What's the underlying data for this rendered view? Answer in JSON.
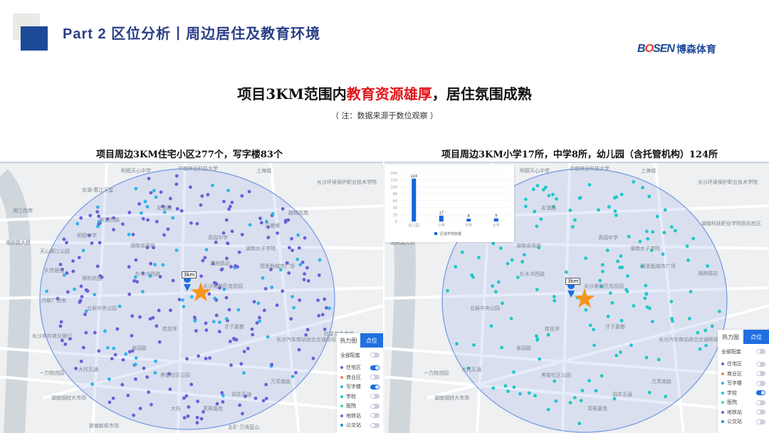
{
  "header": {
    "title": "Part 2 区位分析丨周边居住及教育环境",
    "logo_en_prefix": "B",
    "logo_en_mark": "O",
    "logo_en_suffix": "SEN",
    "logo_cn": "博森体育"
  },
  "headline": {
    "part1": "项目3KM范围内",
    "highlight": "教育资源雄厚",
    "part2": "，居住氛围成熟",
    "color_highlight": "#e0151b"
  },
  "note": "（ 注：数据来源于数位观察 ）",
  "left": {
    "subtitle": "项目周边3KM住宅小区277个，写字楼83个",
    "radius_label": "3km",
    "map_labels": [
      "明德天心中学",
      "中南林业科技大学",
      "上海城",
      "长沙环境保护职业技术学院",
      "龙湖·春江天玺",
      "友谊路",
      "湘江西岸",
      "新韶西路",
      "湘府路大桥",
      "明德中学",
      "湖南省政府",
      "正塘坡",
      "融城花苑",
      "天心阁江公园",
      "青园中学",
      "湖南女子学院",
      "湘府路站",
      "德思勤城市广场",
      "天然居园",
      "保利花园",
      "杉木冲西路",
      "长沙奥林匹克花园",
      "内联广宿舍",
      "北辰中央公园",
      "桂花坪",
      "才子嘉都",
      "长沙农村商业银行",
      "雀园路",
      "长沙汽车南站综合交通枢纽",
      "大托互通",
      "黑黎社区公园",
      "万芙南路",
      "一力物流园",
      "湖南钢材大市场",
      "洞井互通",
      "大托",
      "芙蓉嘉苑",
      "披塘新板市场",
      "五矿·万境蓝山",
      "红星花卉市场"
    ],
    "panel": {
      "tabs": [
        "热力图",
        "点位"
      ],
      "active_tab": "点位",
      "rows": [
        {
          "label": "全部配套",
          "on": false,
          "color": ""
        },
        {
          "label": "住宅区",
          "on": true,
          "color": "#6a5fd6"
        },
        {
          "label": "商业区",
          "on": false,
          "color": "#f08060"
        },
        {
          "label": "写字楼",
          "on": true,
          "color": "#2fb5e8"
        },
        {
          "label": "学校",
          "on": false,
          "color": "#1ec8c8"
        },
        {
          "label": "医院",
          "on": false,
          "color": "#3ed8b0"
        },
        {
          "label": "地铁站",
          "on": false,
          "color": "#5a6fd6"
        },
        {
          "label": "公交站",
          "on": false,
          "color": "#1e90d6"
        }
      ]
    }
  },
  "right": {
    "subtitle": "项目周边3KM小学17所，中学8所，幼儿园（含托管机构）124所",
    "radius_label": "3km",
    "map_labels": [
      "明德天心中学",
      "中南林业科技大学",
      "上海城",
      "长沙环境保护职业技术学院",
      "友谊路",
      "湖南科技职业学院雨花校区",
      "湘府路大桥",
      "湖南省政府",
      "青园中学",
      "湖南女子学院",
      "德思勤城市广场",
      "杉木冲西路",
      "长沙奥林匹克花园",
      "北辰中央公园",
      "桂花坪",
      "才子嘉都",
      "长沙汽车南站综合交通枢纽",
      "雀园路",
      "大托互通",
      "黑黎社区公园",
      "万芙南路",
      "湖南钢材大市场",
      "洞井互通",
      "湘府路站",
      "芙蓉嘉苑",
      "一力物流园"
    ],
    "panel": {
      "tabs": [
        "热力图",
        "点位"
      ],
      "active_tab": "点位",
      "rows": [
        {
          "label": "全部配套",
          "on": false,
          "color": ""
        },
        {
          "label": "住宅区",
          "on": false,
          "color": "#6a5fd6"
        },
        {
          "label": "商业区",
          "on": false,
          "color": "#f08060"
        },
        {
          "label": "写字楼",
          "on": false,
          "color": "#2fb5e8"
        },
        {
          "label": "学校",
          "on": true,
          "color": "#1ec8c8"
        },
        {
          "label": "医院",
          "on": false,
          "color": "#3ed8b0"
        },
        {
          "label": "地铁站",
          "on": false,
          "color": "#5a6fd6"
        },
        {
          "label": "公交站",
          "on": false,
          "color": "#1e90d6"
        }
      ]
    }
  },
  "chart_data": {
    "type": "bar",
    "categories": [
      "幼儿园",
      "小学",
      "中学",
      "大学"
    ],
    "series": [
      {
        "name": "区域学校数量",
        "values": [
          124,
          17,
          8,
          9
        ]
      }
    ],
    "ylim": [
      0,
      140
    ],
    "yticks": [
      0,
      20,
      40,
      60,
      80,
      100,
      120,
      140
    ],
    "color": "#1565d8",
    "grid": true,
    "legend": "bottom"
  }
}
